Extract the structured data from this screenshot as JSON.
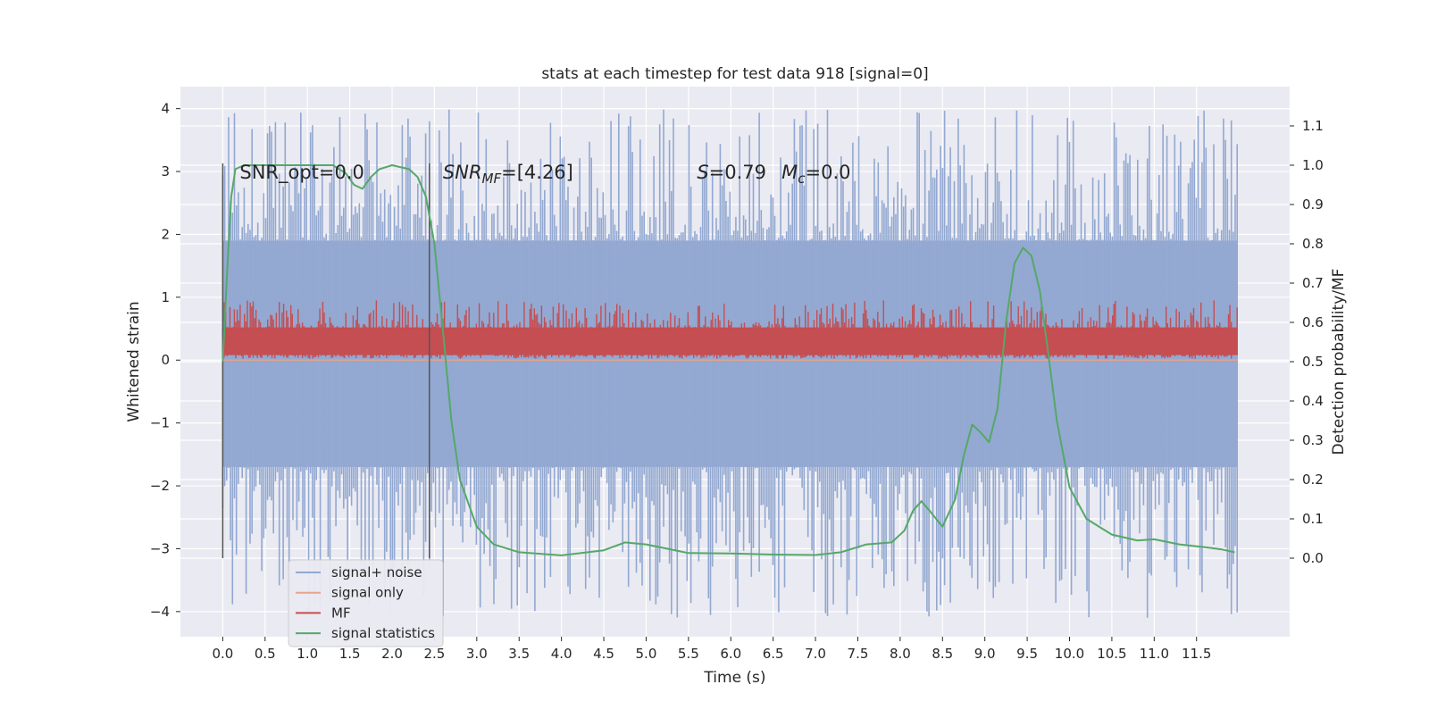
{
  "chart_data": {
    "type": "line",
    "title": "stats at each timestep for test data 918 [signal=0]",
    "xlabel": "Time (s)",
    "ylabel": "Whitened strain",
    "ylabel_right": "Detection probability/MF",
    "xlim": [
      -0.5,
      12.6
    ],
    "ylim": [
      -4.4,
      4.35
    ],
    "ylim_right": [
      -0.2,
      1.2
    ],
    "x_ticks": [
      0.0,
      0.5,
      1.0,
      1.5,
      2.0,
      2.5,
      3.0,
      3.5,
      4.0,
      4.5,
      5.0,
      5.5,
      6.0,
      6.5,
      7.0,
      7.5,
      8.0,
      8.5,
      9.0,
      9.5,
      10.0,
      10.5,
      11.0,
      11.5
    ],
    "x_tick_labels": [
      "0.0",
      "0.5",
      "1.0",
      "1.5",
      "2.0",
      "2.5",
      "3.0",
      "3.5",
      "4.0",
      "4.5",
      "5.0",
      "5.5",
      "6.0",
      "6.5",
      "7.0",
      "7.5",
      "8.0",
      "8.5",
      "9.0",
      "9.5",
      "10.0",
      "10.5",
      "11.0",
      "11.5"
    ],
    "y_ticks": [
      -4,
      -3,
      -2,
      -1,
      0,
      1,
      2,
      3,
      4
    ],
    "y_tick_labels": [
      "−4",
      "−3",
      "−2",
      "−1",
      "0",
      "1",
      "2",
      "3",
      "4"
    ],
    "y_ticks_right": [
      0.0,
      0.1,
      0.2,
      0.3,
      0.4,
      0.5,
      0.6,
      0.7,
      0.8,
      0.9,
      1.0,
      1.1
    ],
    "y_tick_labels_right": [
      "0.0",
      "0.1",
      "0.2",
      "0.3",
      "0.4",
      "0.5",
      "0.6",
      "0.7",
      "0.8",
      "0.9",
      "1.0",
      "1.1"
    ],
    "grid": true,
    "legend_position": "lower-left",
    "series": [
      {
        "name": "signal+ noise",
        "axis": "left",
        "color": "#92a8d1",
        "representation": "dense noise band",
        "x_range": [
          0.0,
          11.98
        ],
        "band_typical": [
          -1.7,
          1.9
        ],
        "peak_max": 4.0,
        "peak_min": -4.1
      },
      {
        "name": "signal only",
        "axis": "left",
        "color": "#e8a488",
        "representation": "flat zero (signal=0)",
        "x": [
          0.0,
          11.98
        ],
        "y": [
          0.0,
          0.0
        ]
      },
      {
        "name": "MF",
        "axis": "left",
        "color": "#c44e52",
        "representation": "dense band",
        "x_range": [
          0.0,
          11.98
        ],
        "band_typical": [
          0.05,
          0.55
        ],
        "peak_max": 0.95
      },
      {
        "name": "signal statistics",
        "axis": "right",
        "color": "#55a868",
        "x": [
          0.0,
          0.05,
          0.1,
          0.15,
          0.25,
          0.5,
          1.0,
          1.3,
          1.45,
          1.55,
          1.65,
          1.75,
          1.85,
          2.0,
          2.2,
          2.3,
          2.4,
          2.5,
          2.6,
          2.7,
          2.8,
          3.0,
          3.2,
          3.5,
          4.0,
          4.5,
          4.75,
          5.0,
          5.5,
          6.0,
          6.5,
          7.0,
          7.3,
          7.6,
          7.9,
          8.05,
          8.15,
          8.25,
          8.35,
          8.5,
          8.65,
          8.75,
          8.85,
          8.95,
          9.05,
          9.15,
          9.25,
          9.35,
          9.45,
          9.55,
          9.65,
          9.75,
          9.85,
          10.0,
          10.2,
          10.5,
          10.8,
          11.0,
          11.3,
          11.6,
          11.8,
          11.95
        ],
        "y": [
          0.5,
          0.72,
          0.92,
          0.99,
          1.0,
          1.0,
          1.0,
          1.0,
          0.98,
          0.95,
          0.94,
          0.97,
          0.99,
          1.0,
          0.99,
          0.97,
          0.92,
          0.8,
          0.58,
          0.35,
          0.2,
          0.08,
          0.035,
          0.015,
          0.007,
          0.02,
          0.04,
          0.035,
          0.013,
          0.012,
          0.009,
          0.008,
          0.015,
          0.035,
          0.04,
          0.07,
          0.12,
          0.145,
          0.12,
          0.08,
          0.15,
          0.26,
          0.34,
          0.32,
          0.295,
          0.38,
          0.6,
          0.75,
          0.79,
          0.77,
          0.68,
          0.52,
          0.35,
          0.18,
          0.1,
          0.06,
          0.045,
          0.048,
          0.035,
          0.028,
          0.022,
          0.015
        ]
      }
    ],
    "vlines": [
      0.0,
      2.44
    ],
    "annotations": [
      {
        "text": "SNR_opt=0.0",
        "x": 0.2,
        "y": 3.0
      },
      {
        "text": "SNR",
        "sub": "MF",
        "rest": "=[4.26]",
        "italic": true,
        "x": 2.6,
        "y": 3.0
      },
      {
        "text": "S",
        "rest": "=0.79",
        "italic": true,
        "x": 5.6,
        "y": 3.0
      },
      {
        "text": "M",
        "sub": "c",
        "rest": "=0.0",
        "italic": true,
        "x": 6.6,
        "y": 3.0
      }
    ],
    "colors": {
      "axes_bg": "#eaeaf2",
      "grid": "#ffffff",
      "vline": "#555555"
    }
  }
}
